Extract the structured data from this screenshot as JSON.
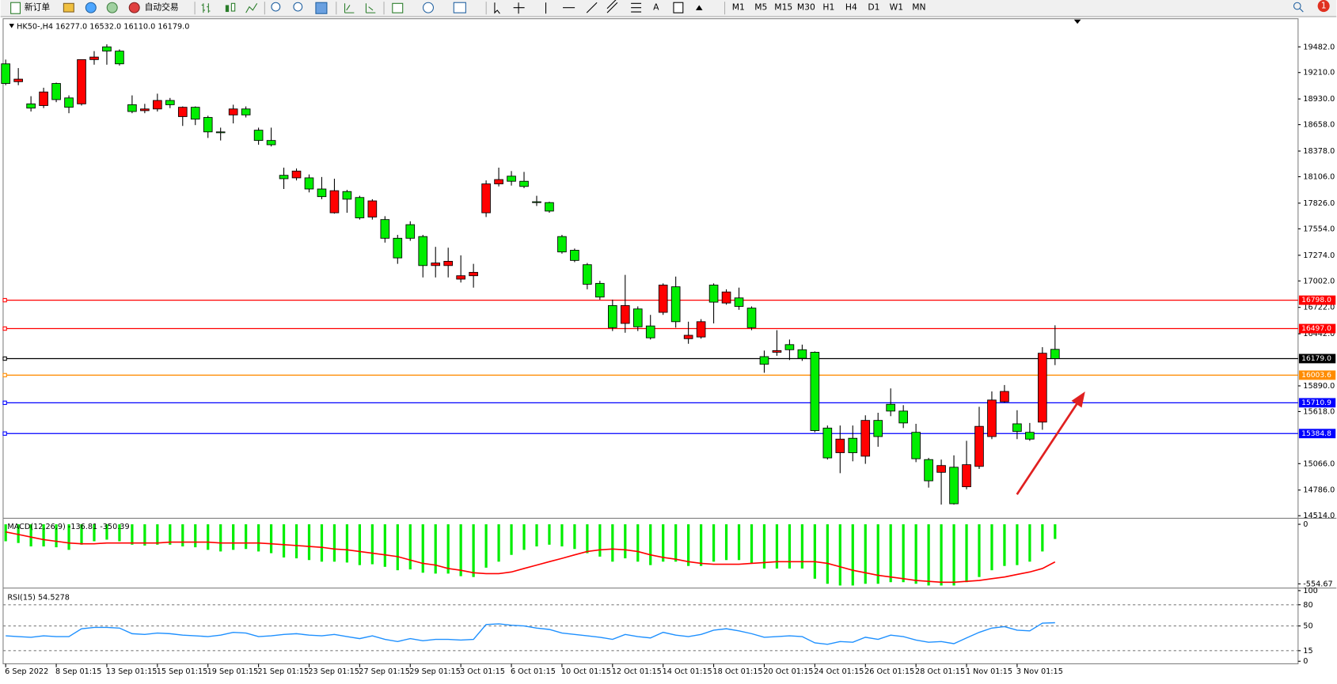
{
  "toolbar": {
    "new_order": "新订单",
    "auto_trading": "自动交易",
    "text_tool": "A",
    "timeframes": [
      "M1",
      "M5",
      "M15",
      "M30",
      "H1",
      "H4",
      "D1",
      "W1",
      "MN"
    ],
    "notifications": "1"
  },
  "chart_data": [
    {
      "type": "candlestick",
      "title": "HK50-,H4  16277.0 16532.0 16110.0 16179.0",
      "bull_color": "#ff0000",
      "bear_color": "#00ee00",
      "categories": [
        "6 Sep 2022",
        null,
        null,
        null,
        "8 Sep 01:15",
        null,
        null,
        null,
        "13 Sep 01:15",
        null,
        null,
        null,
        "15 Sep 01:15",
        null,
        null,
        null,
        "19 Sep 01:15",
        null,
        null,
        null,
        "21 Sep 01:15",
        null,
        null,
        null,
        "23 Sep 01:15",
        null,
        null,
        null,
        "27 Sep 01:15",
        null,
        null,
        null,
        "29 Sep 01:15",
        null,
        null,
        null,
        "3 Oct 01:15",
        null,
        null,
        null,
        "6 Oct 01:15",
        null,
        null,
        null,
        "10 Oct 01:15",
        null,
        null,
        null,
        "12 Oct 01:15",
        null,
        null,
        null,
        "14 Oct 01:15",
        null,
        null,
        null,
        "18 Oct 01:15",
        null,
        null,
        null,
        "20 Oct 01:15",
        null,
        null,
        null,
        "24 Oct 01:15",
        null,
        null,
        null,
        "26 Oct 01:15",
        null,
        null,
        null,
        "28 Oct 01:15",
        null,
        null,
        null,
        "1 Nov 01:15",
        null,
        null,
        null,
        "3 Nov 01:15",
        null,
        null,
        null
      ],
      "open": [
        19302,
        19113,
        18878,
        18860,
        19094,
        18941,
        18878,
        19347,
        19482,
        19437,
        18869,
        18806,
        18824,
        18914,
        18743,
        18842,
        18734,
        18581,
        18761,
        18824,
        18599,
        18490,
        18121,
        18094,
        18094,
        17976,
        17724,
        17949,
        17886,
        17679,
        17652,
        17454,
        17598,
        17472,
        17165,
        17165,
        17021,
        17057,
        17724,
        18030,
        18112,
        18058,
        17841,
        17832,
        17472,
        17327,
        17174,
        16976,
        16741,
        16552,
        16705,
        16525,
        16669,
        16940,
        16390,
        16408,
        16958,
        16768,
        16822,
        16714,
        16200,
        16246,
        16327,
        16273,
        16246,
        15443,
        15182,
        15335,
        15145,
        15524,
        15695,
        15623,
        15398,
        15109,
        14974,
        15028,
        14821,
        15037,
        15353,
        15722,
        15488,
        15398,
        15506,
        16277
      ],
      "high": [
        19347,
        19257,
        18959,
        19049,
        19103,
        18968,
        19347,
        19437,
        19509,
        19455,
        18968,
        18878,
        18986,
        18941,
        18851,
        18851,
        18752,
        18626,
        18869,
        18851,
        18626,
        18626,
        18202,
        18193,
        18130,
        18103,
        18085,
        17967,
        17904,
        17868,
        17688,
        17490,
        17634,
        17490,
        17363,
        17354,
        17273,
        17183,
        18067,
        18202,
        18166,
        18157,
        17904,
        17841,
        17490,
        17345,
        17192,
        17003,
        16804,
        17066,
        16732,
        16642,
        16976,
        17048,
        16570,
        16597,
        16976,
        16913,
        16931,
        16732,
        16264,
        16480,
        16381,
        16327,
        16255,
        15470,
        15470,
        15470,
        15578,
        15605,
        15863,
        15686,
        15488,
        15127,
        15109,
        15154,
        15308,
        15668,
        15831,
        15899,
        15632,
        15497,
        16300,
        16532
      ],
      "low": [
        19076,
        19076,
        18797,
        18833,
        18896,
        18779,
        18860,
        19293,
        19293,
        19284,
        18779,
        18779,
        18797,
        18833,
        18644,
        18653,
        18517,
        18490,
        18671,
        18734,
        18445,
        18427,
        17976,
        18067,
        17940,
        17868,
        17715,
        17724,
        17652,
        17652,
        17408,
        17183,
        17427,
        17039,
        17039,
        17039,
        16985,
        16931,
        17679,
        18003,
        18012,
        17985,
        17796,
        17724,
        17291,
        17201,
        16913,
        16804,
        16471,
        16453,
        16471,
        16381,
        16642,
        16507,
        16336,
        16390,
        16552,
        16750,
        16696,
        16480,
        16029,
        16209,
        16164,
        16155,
        15398,
        15109,
        14965,
        15091,
        15064,
        15245,
        15569,
        15443,
        15082,
        14812,
        14632,
        14632,
        14794,
        15010,
        15326,
        15713,
        15326,
        15308,
        15425,
        16110
      ],
      "close": [
        19094,
        19140,
        18833,
        19004,
        18923,
        18842,
        19347,
        19374,
        19437,
        19302,
        18797,
        18824,
        18914,
        18869,
        18842,
        18716,
        18581,
        18572,
        18824,
        18761,
        18490,
        18445,
        18085,
        18166,
        17976,
        17895,
        17958,
        17868,
        17670,
        17850,
        17454,
        17246,
        17454,
        17165,
        17192,
        17210,
        17057,
        17093,
        18030,
        18076,
        18058,
        18003,
        17832,
        17742,
        17309,
        17219,
        16967,
        16831,
        16507,
        16741,
        16516,
        16399,
        16958,
        16570,
        16426,
        16570,
        16777,
        16885,
        16732,
        16507,
        16119,
        16264,
        16273,
        16182,
        15416,
        15127,
        15326,
        15182,
        15524,
        15353,
        15623,
        15497,
        15118,
        14884,
        15046,
        14641,
        15055,
        15461,
        15740,
        15831,
        15407,
        15326,
        16236,
        16179
      ],
      "ylim": [
        14496,
        19753
      ],
      "yticks": [
        {
          "value": 19482,
          "label": "19482.0"
        },
        {
          "value": 19210,
          "label": "19210.0"
        },
        {
          "value": 18930,
          "label": "18930.0"
        },
        {
          "value": 18658,
          "label": "18658.0"
        },
        {
          "value": 18378,
          "label": "18378.0"
        },
        {
          "value": 18106,
          "label": "18106.0"
        },
        {
          "value": 17826,
          "label": "17826.0"
        },
        {
          "value": 17554,
          "label": "17554.0"
        },
        {
          "value": 17274,
          "label": "17274.0"
        },
        {
          "value": 17002,
          "label": "17002.0"
        },
        {
          "value": 16722,
          "label": "16722.0"
        },
        {
          "value": 16442,
          "label": "16442.0"
        },
        {
          "value": 15890,
          "label": "15890.0"
        },
        {
          "value": 15618,
          "label": "15618.0"
        },
        {
          "value": 15066,
          "label": "15066.0"
        },
        {
          "value": 14786,
          "label": "14786.0"
        },
        {
          "value": 14514,
          "label": "14514.0"
        }
      ],
      "levels": [
        {
          "value": 16798,
          "label": "16798.0",
          "color": "#ff0000"
        },
        {
          "value": 16497,
          "label": "16497.0",
          "color": "#ff0000"
        },
        {
          "value": 16179,
          "label": "16179.0",
          "color": "#000000"
        },
        {
          "value": 16003.6,
          "label": "16003.6",
          "color": "#ff8c00"
        },
        {
          "value": 15710.9,
          "label": "15710.9",
          "color": "#0000ff"
        },
        {
          "value": 15384.8,
          "label": "15384.8",
          "color": "#0000ff"
        }
      ]
    },
    {
      "type": "macd",
      "title": "MACD(12,26,9) -136.81 -350.39",
      "ylim": [
        -586,
        48
      ],
      "yticks": [
        0,
        -554.67
      ],
      "series": [
        {
          "color": "#00ee00",
          "values": [
            -158,
            -174,
            -206,
            -206,
            -214,
            -238,
            -190,
            -158,
            -143,
            -158,
            -190,
            -198,
            -190,
            -190,
            -206,
            -214,
            -238,
            -253,
            -238,
            -230,
            -253,
            -269,
            -309,
            -317,
            -333,
            -348,
            -348,
            -356,
            -380,
            -372,
            -396,
            -428,
            -420,
            -451,
            -459,
            -459,
            -483,
            -491,
            -404,
            -348,
            -285,
            -238,
            -206,
            -190,
            -206,
            -230,
            -269,
            -301,
            -348,
            -317,
            -348,
            -380,
            -348,
            -348,
            -388,
            -388,
            -348,
            -333,
            -333,
            -364,
            -412,
            -412,
            -412,
            -412,
            -507,
            -554,
            -570,
            -570,
            -554,
            -554,
            -539,
            -539,
            -554,
            -570,
            -570,
            -570,
            -539,
            -491,
            -428,
            -388,
            -380,
            -348,
            -253,
            -136.81
          ]
        },
        {
          "color": "#ff0000",
          "values": [
            -71,
            -95,
            -119,
            -143,
            -158,
            -174,
            -182,
            -182,
            -174,
            -174,
            -174,
            -174,
            -174,
            -166,
            -166,
            -166,
            -166,
            -174,
            -174,
            -174,
            -174,
            -182,
            -190,
            -198,
            -206,
            -214,
            -230,
            -238,
            -253,
            -269,
            -285,
            -301,
            -333,
            -364,
            -380,
            -412,
            -428,
            -451,
            -459,
            -459,
            -444,
            -412,
            -380,
            -348,
            -317,
            -285,
            -253,
            -238,
            -230,
            -238,
            -253,
            -285,
            -309,
            -325,
            -348,
            -364,
            -372,
            -372,
            -372,
            -364,
            -356,
            -348,
            -348,
            -348,
            -348,
            -364,
            -396,
            -428,
            -451,
            -475,
            -491,
            -507,
            -523,
            -531,
            -539,
            -539,
            -531,
            -523,
            -507,
            -491,
            -467,
            -444,
            -412,
            -350.39
          ]
        }
      ]
    },
    {
      "type": "line",
      "title": "RSI(15) 54.5278",
      "color": "#1e90ff",
      "ylim": [
        0,
        100
      ],
      "yticks": [
        100,
        80,
        50,
        15,
        0
      ],
      "values": [
        36,
        35,
        34,
        36,
        35,
        35,
        46,
        48,
        48,
        47,
        39,
        38,
        40,
        39,
        37,
        36,
        35,
        37,
        41,
        40,
        35,
        36,
        38,
        39,
        37,
        36,
        38,
        35,
        32,
        36,
        31,
        28,
        32,
        29,
        31,
        31,
        30,
        31,
        52,
        53,
        51,
        50,
        47,
        45,
        40,
        38,
        36,
        34,
        31,
        38,
        35,
        33,
        41,
        37,
        35,
        38,
        44,
        46,
        43,
        39,
        34,
        35,
        36,
        35,
        26,
        24,
        28,
        27,
        34,
        31,
        37,
        35,
        30,
        27,
        28,
        25,
        33,
        41,
        47,
        49,
        44,
        43,
        54,
        54.5278
      ]
    }
  ]
}
